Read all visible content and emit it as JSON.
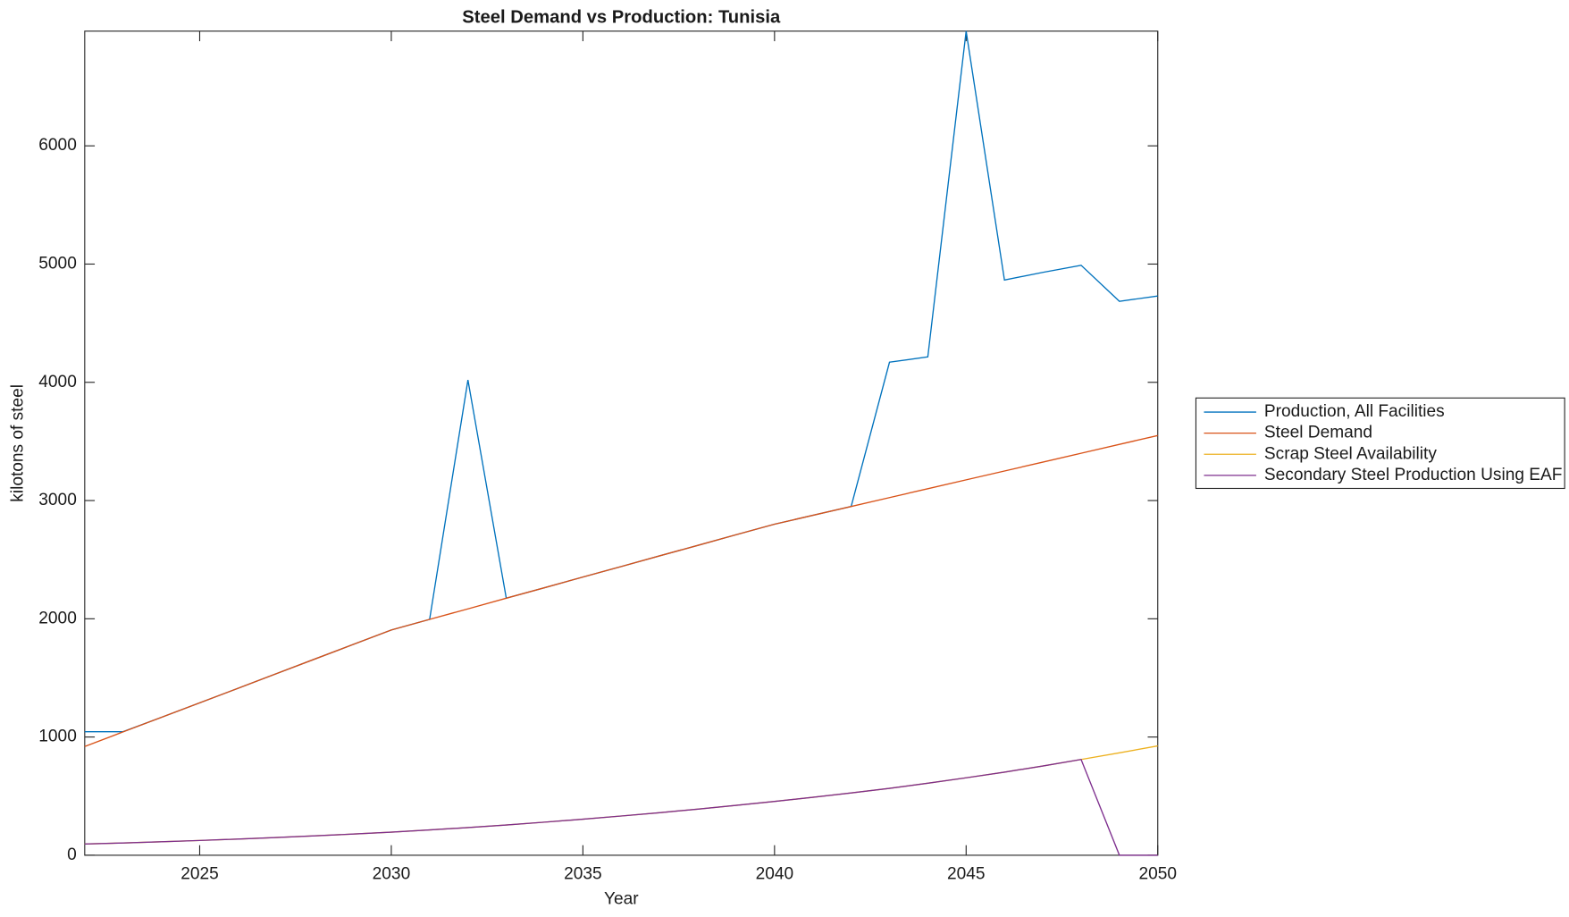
{
  "chart_data": {
    "type": "line",
    "title": "Steel Demand vs Production: Tunisia",
    "x_label": "Year",
    "y_label": "kilotons of steel",
    "x": [
      2022,
      2023,
      2024,
      2025,
      2026,
      2027,
      2028,
      2029,
      2030,
      2031,
      2032,
      2033,
      2034,
      2035,
      2036,
      2037,
      2038,
      2039,
      2040,
      2041,
      2042,
      2043,
      2044,
      2045,
      2046,
      2047,
      2048,
      2049,
      2050
    ],
    "xlim": [
      2022,
      2050
    ],
    "xticks": [
      2025,
      2030,
      2035,
      2040,
      2045,
      2050
    ],
    "ylim": [
      0,
      6970
    ],
    "yticks": [
      0,
      1000,
      2000,
      3000,
      4000,
      5000,
      6000
    ],
    "legend": "outside-right",
    "series": [
      {
        "name": "Production, All Facilities",
        "color": "#0072bd",
        "values": [
          1045,
          1045,
          1166,
          1289,
          1412,
          1536,
          1659,
          1782,
          1905,
          1995,
          4020,
          2174,
          2263,
          2353,
          2442,
          2532,
          2621,
          2711,
          2800,
          2875,
          2950,
          4170,
          4215,
          6970,
          4865,
          4930,
          4990,
          4685,
          4730
        ]
      },
      {
        "name": "Steel Demand",
        "color": "#d95319",
        "values": [
          920,
          1043,
          1166,
          1289,
          1412,
          1536,
          1659,
          1782,
          1905,
          1995,
          2084,
          2174,
          2263,
          2353,
          2442,
          2532,
          2621,
          2711,
          2800,
          2875,
          2950,
          3025,
          3100,
          3175,
          3250,
          3325,
          3400,
          3475,
          3550
        ]
      },
      {
        "name": "Scrap Steel Availability",
        "color": "#edb120",
        "values": [
          95,
          104,
          114,
          125,
          137,
          150,
          164,
          179,
          195,
          214,
          234,
          256,
          280,
          305,
          332,
          360,
          390,
          422,
          455,
          490,
          527,
          566,
          609,
          655,
          703,
          755,
          810,
          866,
          925
        ]
      },
      {
        "name": "Secondary Steel Production Using EAF",
        "color": "#7e2f8e",
        "values": [
          95,
          104,
          114,
          125,
          137,
          150,
          164,
          179,
          195,
          214,
          234,
          256,
          280,
          305,
          332,
          360,
          390,
          422,
          455,
          490,
          527,
          566,
          609,
          655,
          703,
          755,
          810,
          0,
          0
        ]
      }
    ]
  }
}
